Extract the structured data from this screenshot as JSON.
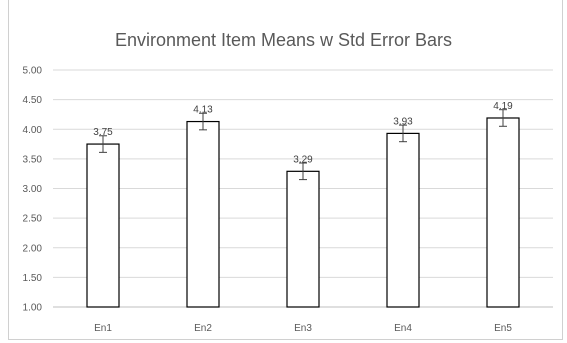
{
  "chart_data": {
    "type": "bar",
    "title": "Environment Item Means w Std Error Bars",
    "categories": [
      "En1",
      "En2",
      "En3",
      "En4",
      "En5"
    ],
    "values": [
      3.75,
      4.13,
      3.29,
      3.93,
      4.19
    ],
    "data_labels": [
      "3.75",
      "4.13",
      "3.29",
      "3.93",
      "4.19"
    ],
    "error": [
      0.14,
      0.14,
      0.14,
      0.14,
      0.14
    ],
    "ylim": [
      1.0,
      5.0
    ],
    "yticks": [
      "1.00",
      "1.50",
      "2.00",
      "2.50",
      "3.00",
      "3.50",
      "4.00",
      "4.50",
      "5.00"
    ],
    "grid": true,
    "xlabel": "",
    "ylabel": "",
    "colors": {
      "bar_fill": "#ffffff",
      "bar_stroke": "#000000",
      "grid": "#d9d9d9",
      "text": "#595959"
    }
  }
}
